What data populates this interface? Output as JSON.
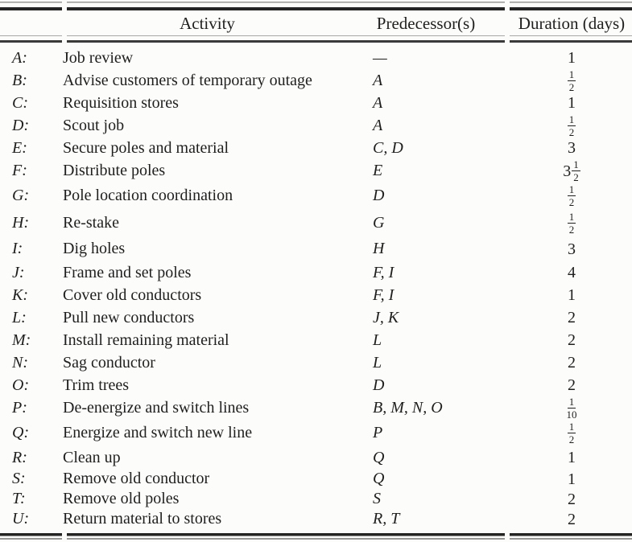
{
  "table": {
    "columns": {
      "activity": "Activity",
      "predecessors": "Predecessor(s)",
      "duration": "Duration (days)"
    },
    "rows": [
      {
        "id": "A:",
        "activity": "Job review",
        "predecessors": "—",
        "duration": "1"
      },
      {
        "id": "B:",
        "activity": "Advise customers of temporary outage",
        "predecessors": "A",
        "duration": "1/2"
      },
      {
        "id": "C:",
        "activity": "Requisition stores",
        "predecessors": "A",
        "duration": "1"
      },
      {
        "id": "D:",
        "activity": "Scout job",
        "predecessors": "A",
        "duration": "1/2"
      },
      {
        "id": "E:",
        "activity": "Secure poles and material",
        "predecessors": "C, D",
        "duration": "3"
      },
      {
        "id": "F:",
        "activity": "Distribute poles",
        "predecessors": "E",
        "duration": "3 1/2"
      },
      {
        "id": "G:",
        "activity": "Pole location coordination",
        "predecessors": "D",
        "duration": "1/2"
      },
      {
        "id": "H:",
        "activity": "Re-stake",
        "predecessors": "G",
        "duration": "1/2"
      },
      {
        "id": "I:",
        "activity": "Dig holes",
        "predecessors": "H",
        "duration": "3"
      },
      {
        "id": "J:",
        "activity": "Frame and set poles",
        "predecessors": "F, I",
        "duration": "4"
      },
      {
        "id": "K:",
        "activity": "Cover old conductors",
        "predecessors": "F, I",
        "duration": "1"
      },
      {
        "id": "L:",
        "activity": "Pull new conductors",
        "predecessors": "J, K",
        "duration": "2"
      },
      {
        "id": "M:",
        "activity": "Install remaining material",
        "predecessors": "L",
        "duration": "2"
      },
      {
        "id": "N:",
        "activity": "Sag conductor",
        "predecessors": "L",
        "duration": "2"
      },
      {
        "id": "O:",
        "activity": "Trim trees",
        "predecessors": "D",
        "duration": "2"
      },
      {
        "id": "P:",
        "activity": "De-energize and switch lines",
        "predecessors": "B, M, N, O",
        "duration": "1/10"
      },
      {
        "id": "Q:",
        "activity": "Energize and switch new line",
        "predecessors": "P",
        "duration": "1/2"
      },
      {
        "id": "R:",
        "activity": "Clean up",
        "predecessors": "Q",
        "duration": "1"
      },
      {
        "id": "S:",
        "activity": "Remove old conductor",
        "predecessors": "Q",
        "duration": "1"
      },
      {
        "id": "T:",
        "activity": "Remove old poles",
        "predecessors": "S",
        "duration": "2"
      },
      {
        "id": "U:",
        "activity": "Return material to stores",
        "predecessors": "R, T",
        "duration": "2"
      }
    ]
  },
  "colors": {
    "text": "#1f1f1f",
    "rule_dark": "#242424",
    "rule_light": "#979797",
    "background": "#fcfcfa"
  }
}
